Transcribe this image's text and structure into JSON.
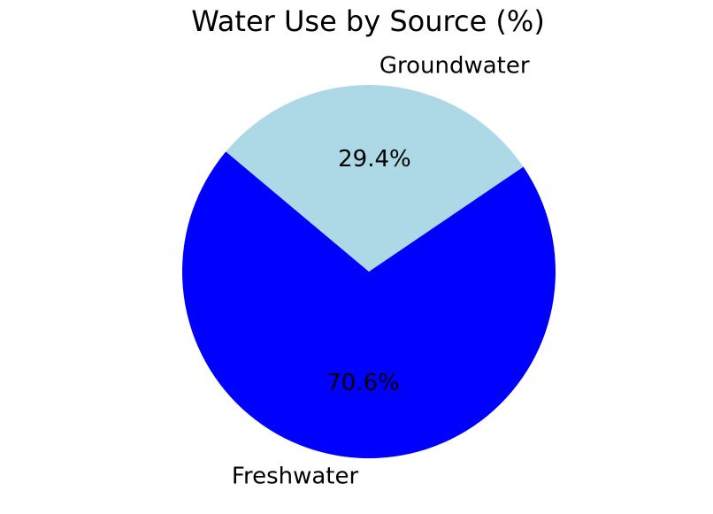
{
  "chart_data": {
    "type": "pie",
    "title": "Water Use by Source (%)",
    "slices": [
      {
        "label": "Freshwater",
        "value": 70.6,
        "value_label": "70.6%",
        "color": "#0000ff"
      },
      {
        "label": "Groundwater",
        "value": 29.4,
        "value_label": "29.4%",
        "color": "#add8e6"
      }
    ],
    "start_angle_degrees": 140,
    "direction": "counterclockwise",
    "legend": "none"
  }
}
